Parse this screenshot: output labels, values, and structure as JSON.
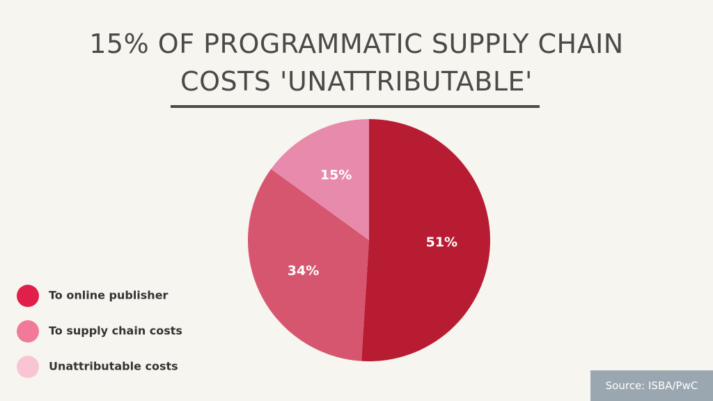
{
  "chart_data": {
    "type": "pie",
    "title": "15% OF PROGRAMMATIC SUPPLY CHAIN COSTS 'UNATTRIBUTABLE'",
    "categories": [
      "To online publisher",
      "To supply chain costs",
      "Unattributable costs"
    ],
    "values": [
      51,
      34,
      15
    ],
    "value_labels": [
      "51%",
      "34%",
      "15%"
    ],
    "colors": [
      "#b81c32",
      "#d6566f",
      "#e78aab"
    ],
    "legend_colors": [
      "#e0204a",
      "#f07a98",
      "#f9c4d4"
    ],
    "legend": "left",
    "source": "Source: ISBA/PwC"
  }
}
